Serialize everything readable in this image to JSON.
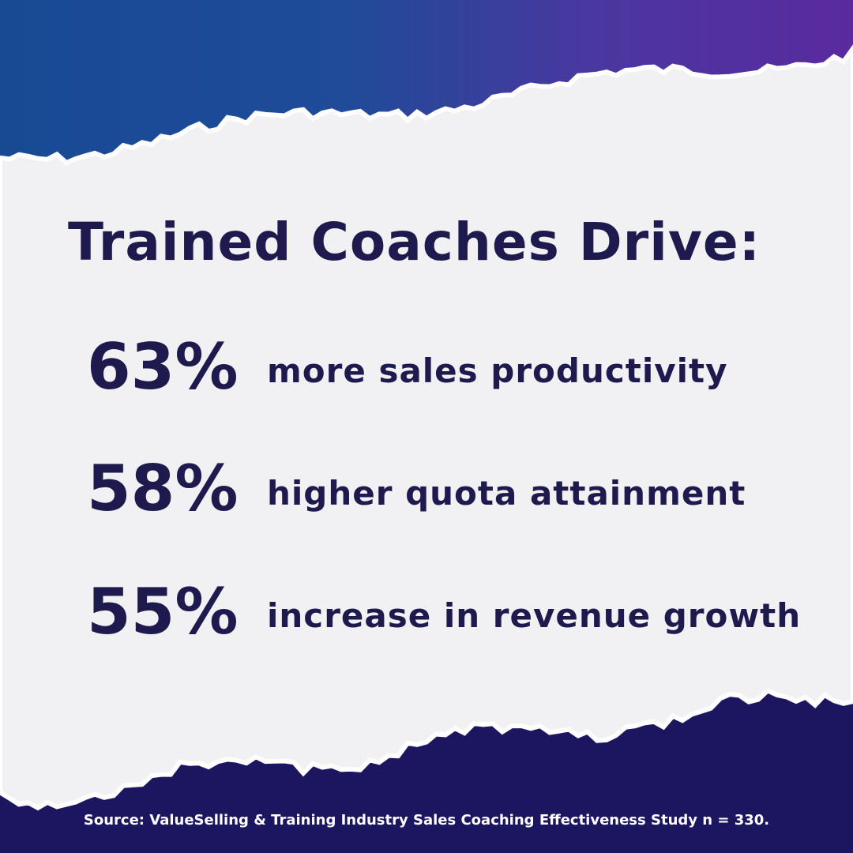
{
  "title": "Trained Coaches Drive:",
  "stats": [
    {
      "value": "63%",
      "label": "more sales productivity"
    },
    {
      "value": "58%",
      "label": "higher quota attainment"
    },
    {
      "value": "55%",
      "label": "increase in revenue growth"
    }
  ],
  "source": "Source: ValueSelling & Training Industry Sales Coaching Effectiveness Study n = 330."
}
